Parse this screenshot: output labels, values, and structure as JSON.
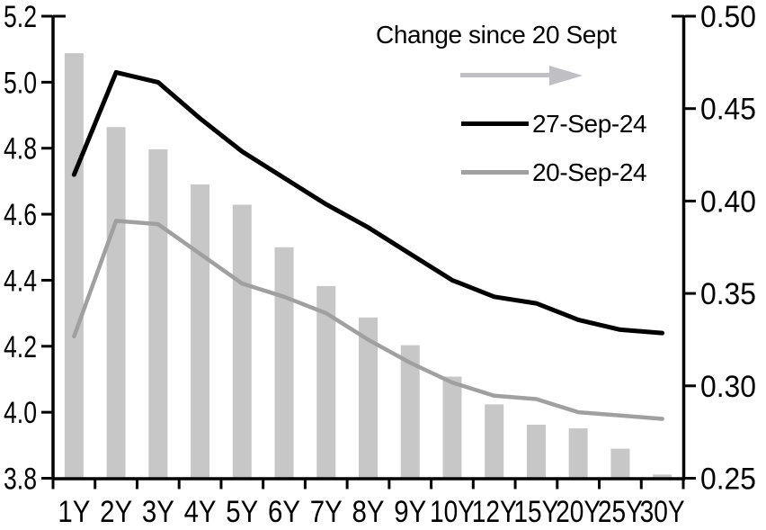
{
  "chart_data": {
    "type": "combo_bar_line",
    "categories": [
      "1Y",
      "2Y",
      "3Y",
      "4Y",
      "5Y",
      "6Y",
      "7Y",
      "8Y",
      "9Y",
      "10Y",
      "12Y",
      "15Y",
      "20Y",
      "25Y",
      "30Y"
    ],
    "series": [
      {
        "name": "Change since 20 Sept",
        "render": "bar",
        "axis": "right",
        "color": "#c7c7c7",
        "values": [
          0.48,
          0.44,
          0.428,
          0.409,
          0.398,
          0.375,
          0.354,
          0.337,
          0.322,
          0.305,
          0.29,
          0.279,
          0.277,
          0.266,
          0.252
        ]
      },
      {
        "name": "27-Sep-24",
        "render": "line",
        "axis": "left",
        "color": "#000000",
        "values": [
          4.72,
          5.03,
          5.0,
          4.89,
          4.79,
          4.71,
          4.63,
          4.56,
          4.48,
          4.4,
          4.35,
          4.33,
          4.28,
          4.25,
          4.24
        ]
      },
      {
        "name": "20-Sep-24",
        "render": "line",
        "axis": "left",
        "color": "#a0a0a0",
        "values": [
          4.23,
          4.58,
          4.57,
          4.48,
          4.39,
          4.35,
          4.3,
          4.22,
          4.15,
          4.09,
          4.05,
          4.04,
          4.0,
          3.99,
          3.98
        ]
      }
    ],
    "left_axis": {
      "min": 3.8,
      "max": 5.2,
      "tick_labels": [
        "5.2",
        "5.0",
        "4.8",
        "4.6",
        "4.4",
        "4.2",
        "4.0",
        "3.8"
      ]
    },
    "right_axis": {
      "min": 0.25,
      "max": 0.5,
      "tick_labels": [
        "0.50",
        "0.45",
        "0.40",
        "0.35",
        "0.30",
        "0.25"
      ]
    },
    "grid": false,
    "legend": {
      "position": "top-right-inside",
      "title": "Change since 20 Sept",
      "arrow_color": "#c0c0c4",
      "items": [
        {
          "label": "27-Sep-24",
          "color": "#000000"
        },
        {
          "label": "20-Sep-24",
          "color": "#a0a0a0"
        }
      ]
    }
  }
}
